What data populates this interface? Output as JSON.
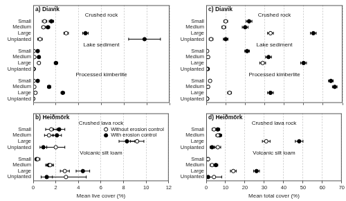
{
  "chart_data": [
    {
      "type": "dot",
      "title": "a) Diavik",
      "xlim": [
        0,
        12
      ],
      "xticks": [
        0,
        2,
        4,
        6,
        8,
        10,
        12
      ],
      "grid": true,
      "tick_labels": "y",
      "groups": [
        {
          "title": "Crushed rock",
          "categories": [
            "Small",
            "Medium",
            "Large",
            "Unplanted"
          ],
          "series": [
            {
              "color": "#000000",
              "marker": "open_circle",
              "values": [
                1.0,
                0.9,
                2.9,
                0.6
              ],
              "errors": [
                0.2,
                0.15,
                0.2,
                0.2
              ]
            },
            {
              "color": "#000000",
              "marker": "circle",
              "values": [
                1.6,
                1.3,
                4.6,
                9.8
              ],
              "errors": [
                0.2,
                0.15,
                0.25,
                1.4
              ]
            }
          ]
        },
        {
          "title": "Lake sediment",
          "categories": [
            "Small",
            "Medium",
            "Large",
            "Unplanted"
          ],
          "series": [
            {
              "color": "#000000",
              "marker": "open_circle",
              "values": [
                0.05,
                0.1,
                0.5,
                0
              ],
              "errors": [
                0.05,
                0.05,
                0.1,
                0
              ]
            },
            {
              "color": "#000000",
              "marker": "circle",
              "values": [
                0.4,
                0.5,
                2.0,
                0.05
              ],
              "errors": [
                0.1,
                0.1,
                0.15,
                0.05
              ]
            }
          ]
        },
        {
          "title": "Processed kimberlite",
          "categories": [
            "Small",
            "Medium",
            "Large",
            "Unplanted"
          ],
          "series": [
            {
              "color": "#000000",
              "marker": "open_circle",
              "values": [
                0.05,
                0.1,
                0.2,
                0
              ],
              "errors": [
                0.05,
                0.05,
                0.1,
                0
              ]
            },
            {
              "color": "#000000",
              "marker": "circle",
              "values": [
                0.4,
                1.4,
                2.6,
                0
              ],
              "errors": [
                0.1,
                0.15,
                0.15,
                0
              ]
            }
          ]
        }
      ]
    },
    {
      "type": "dot",
      "title": "b) Heiðmörk",
      "xlabel": "Mean live cover (%)",
      "xlim": [
        0,
        12
      ],
      "xticks": [
        0,
        2,
        4,
        6,
        8,
        10,
        12
      ],
      "grid": true,
      "legend": "right",
      "groups": [
        {
          "title": "Crushed lava rock",
          "categories": [
            "Small",
            "Medium",
            "Large",
            "Unplanted"
          ],
          "series": [
            {
              "name": "Without erosion control",
              "color": "#000000",
              "marker": "open_circle",
              "values": [
                1.6,
                1.4,
                9.2,
                2.0
              ],
              "errors": [
                0.5,
                0.4,
                0.6,
                0.8
              ]
            },
            {
              "name": "With erosion control",
              "color": "#000000",
              "marker": "circle",
              "values": [
                2.3,
                2.1,
                8.3,
                0.9
              ],
              "errors": [
                0.5,
                0.4,
                0.7,
                0.3
              ]
            }
          ]
        },
        {
          "title": "Volcanic silt loam",
          "categories": [
            "Small",
            "Medium",
            "Large",
            "Unplanted"
          ],
          "series": [
            {
              "color": "#000000",
              "marker": "open_circle",
              "values": [
                0.4,
                1.5,
                2.8,
                2.9
              ],
              "errors": [
                0.2,
                0.3,
                0.4,
                1.8
              ]
            },
            {
              "color": "#000000",
              "marker": "circle",
              "values": [
                0.3,
                1.4,
                4.4,
                1.2
              ],
              "errors": [
                0.1,
                0.3,
                0.6,
                0.5
              ]
            }
          ]
        }
      ]
    },
    {
      "type": "dot",
      "title": "c) Diavik",
      "xlim": [
        0,
        70
      ],
      "xticks": [
        0,
        10,
        20,
        30,
        40,
        50,
        60,
        70
      ],
      "grid": true,
      "tick_labels": "y",
      "groups": [
        {
          "title": "Crushed rock",
          "categories": [
            "Small",
            "Medium",
            "Large",
            "Unplanted"
          ],
          "series": [
            {
              "color": "#000000",
              "marker": "open_circle",
              "values": [
                10,
                9,
                33,
                2.5
              ],
              "errors": [
                1,
                1,
                1.5,
                1
              ]
            },
            {
              "color": "#000000",
              "marker": "circle",
              "values": [
                22,
                20,
                55,
                10
              ],
              "errors": [
                1.5,
                1.5,
                1.5,
                1.2
              ]
            }
          ]
        },
        {
          "title": "Lake sediment",
          "categories": [
            "Small",
            "Medium",
            "Large",
            "Unplanted"
          ],
          "series": [
            {
              "color": "#000000",
              "marker": "open_circle",
              "values": [
                0.5,
                1,
                29,
                0.3
              ],
              "errors": [
                0.3,
                0.5,
                1.5,
                0.2
              ]
            },
            {
              "color": "#000000",
              "marker": "circle",
              "values": [
                21,
                32,
                50,
                0.8
              ],
              "errors": [
                1.2,
                1.5,
                1.5,
                0.4
              ]
            }
          ]
        },
        {
          "title": "Processed kimberlite",
          "categories": [
            "Small",
            "Medium",
            "Large",
            "Unplanted"
          ],
          "series": [
            {
              "color": "#000000",
              "marker": "open_circle",
              "values": [
                2,
                1,
                12,
                0.5
              ],
              "errors": [
                0.5,
                0.5,
                1,
                0.3
              ]
            },
            {
              "color": "#000000",
              "marker": "circle",
              "values": [
                64,
                66,
                33,
                0.5
              ],
              "errors": [
                1.2,
                1.2,
                1.5,
                0.3
              ]
            }
          ]
        }
      ]
    },
    {
      "type": "dot",
      "title": "d) Heiðmörk",
      "xlabel": "Mean total cover (%)",
      "xlim": [
        0,
        70
      ],
      "xticks": [
        0,
        10,
        20,
        30,
        40,
        50,
        60,
        70
      ],
      "grid": true,
      "groups": [
        {
          "title": "Crushed lava rock",
          "categories": [
            "Small",
            "Medium",
            "Large",
            "Unplanted"
          ],
          "series": [
            {
              "color": "#000000",
              "marker": "open_circle",
              "values": [
                4,
                6,
                31,
                6
              ],
              "errors": [
                1,
                1,
                2,
                1.5
              ]
            },
            {
              "color": "#000000",
              "marker": "circle",
              "values": [
                6,
                7,
                48,
                3
              ],
              "errors": [
                1,
                1,
                2,
                1
              ]
            }
          ]
        },
        {
          "title": "Volcanic silt loam",
          "categories": [
            "Small",
            "Medium",
            "Large",
            "Unplanted"
          ],
          "series": [
            {
              "color": "#000000",
              "marker": "open_circle",
              "values": [
                1,
                3,
                14,
                4
              ],
              "errors": [
                0.5,
                1,
                1.5,
                4
              ]
            },
            {
              "color": "#000000",
              "marker": "circle",
              "values": [
                0.8,
                5,
                26,
                1
              ],
              "errors": [
                0.4,
                1,
                1.5,
                0.5
              ]
            }
          ]
        }
      ]
    }
  ]
}
